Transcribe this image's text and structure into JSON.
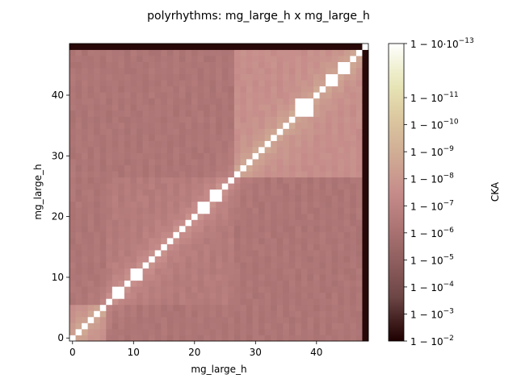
{
  "chart_data": {
    "type": "heatmap",
    "title": "polyrhythms: mg_large_h x mg_large_h",
    "xlabel": "mg_large_h",
    "ylabel": "mg_large_h",
    "n": 49,
    "xlim": [
      -0.5,
      48.5
    ],
    "ylim": [
      -0.5,
      48.5
    ],
    "x_ticks": [
      0,
      10,
      20,
      30,
      40
    ],
    "y_ticks": [
      0,
      10,
      20,
      30,
      40
    ],
    "colorbar": {
      "label": "CKA",
      "scale": "log of (1 - CKA)",
      "colormap": "pink",
      "range": [
        0.01,
        1e-13
      ],
      "tick_labels": [
        {
          "exp": -13,
          "text": "1 − 10·10",
          "sup": "−13"
        },
        {
          "exp": -11,
          "text": "1 − 10",
          "sup": "−11"
        },
        {
          "exp": -10,
          "text": "1 − 10",
          "sup": "−10"
        },
        {
          "exp": -9,
          "text": "1 − 10",
          "sup": "−9"
        },
        {
          "exp": -8,
          "text": "1 − 10",
          "sup": "−8"
        },
        {
          "exp": -7,
          "text": "1 − 10",
          "sup": "−7"
        },
        {
          "exp": -6,
          "text": "1 − 10",
          "sup": "−6"
        },
        {
          "exp": -5,
          "text": "1 − 10",
          "sup": "−5"
        },
        {
          "exp": -4,
          "text": "1 − 10",
          "sup": "−4"
        },
        {
          "exp": -3,
          "text": "1 − 10",
          "sup": "−3"
        },
        {
          "exp": -2,
          "text": "1 − 10",
          "sup": "−2"
        }
      ]
    },
    "structure": {
      "description_values": "1-CKA exponent per cell, estimated",
      "diagonal_exp": -13,
      "off_block_exp": -6.3,
      "early_block": {
        "range": [
          0,
          5
        ],
        "exp": -7.5
      },
      "mid_block": {
        "range": [
          6,
          26
        ],
        "exp": -6.6
      },
      "late_block": {
        "range": [
          27,
          47
        ],
        "exp": -7.6
      },
      "last_layer_index": 48,
      "last_layer_exp": -2.2,
      "white_blocks": [
        [
          7,
          8
        ],
        [
          10,
          11
        ],
        [
          21,
          22
        ],
        [
          23,
          24
        ],
        [
          37,
          39
        ],
        [
          42,
          43
        ],
        [
          44,
          45
        ]
      ]
    }
  }
}
